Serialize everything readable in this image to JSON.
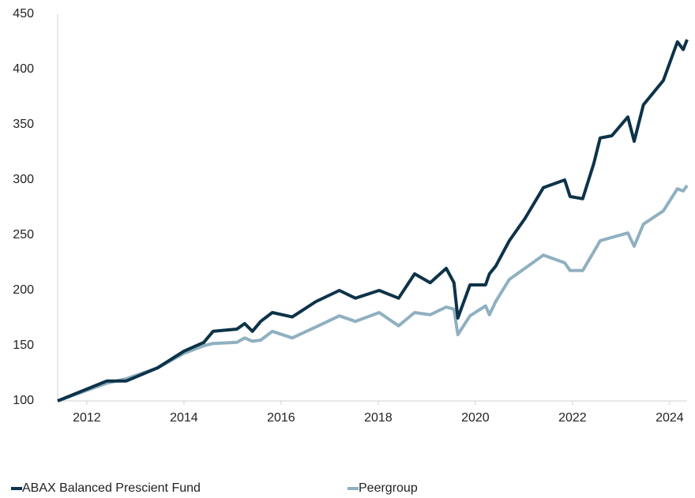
{
  "chart_data": {
    "type": "line",
    "x": [
      2011.4,
      2012.41,
      2012.81,
      2013.46,
      2014.0,
      2014.41,
      2014.6,
      2015.09,
      2015.25,
      2015.41,
      2015.58,
      2015.82,
      2016.23,
      2016.72,
      2017.2,
      2017.53,
      2018.02,
      2018.42,
      2018.75,
      2019.07,
      2019.4,
      2019.56,
      2019.64,
      2019.89,
      2020.21,
      2020.29,
      2020.42,
      2020.7,
      2021.02,
      2021.4,
      2021.84,
      2021.95,
      2022.21,
      2022.44,
      2022.57,
      2022.81,
      2023.14,
      2023.27,
      2023.46,
      2023.87,
      2024.16,
      2024.28,
      2024.36
    ],
    "series": [
      {
        "name": "ABAX Balanced Prescient Fund",
        "color": "#0d3349",
        "values": [
          100,
          118,
          118,
          130,
          145,
          153,
          163,
          165,
          170,
          163,
          172,
          180,
          176,
          190,
          200,
          193,
          200,
          193,
          215,
          207,
          220,
          207,
          175,
          205,
          205,
          215,
          222,
          245,
          265,
          293,
          300,
          285,
          283,
          315,
          338,
          340,
          357,
          335,
          368,
          390,
          425,
          418,
          427
        ]
      },
      {
        "name": "Peergroup",
        "color": "#8fb0c0",
        "values": [
          100,
          116,
          120,
          130,
          143,
          150,
          152,
          153,
          157,
          154,
          155,
          163,
          157,
          167,
          177,
          172,
          180,
          168,
          180,
          178,
          185,
          183,
          160,
          177,
          186,
          178,
          190,
          210,
          220,
          232,
          225,
          218,
          218,
          235,
          245,
          248,
          252,
          240,
          260,
          272,
          292,
          290,
          295
        ]
      }
    ],
    "xlim": [
      2011.4,
      2024.36
    ],
    "xticks": [
      2012,
      2014,
      2016,
      2018,
      2020,
      2022,
      2024
    ],
    "ylim": [
      100,
      450
    ],
    "yticks": [
      100,
      150,
      200,
      250,
      300,
      350,
      400,
      450
    ],
    "grid": false,
    "legend": "bottom"
  }
}
